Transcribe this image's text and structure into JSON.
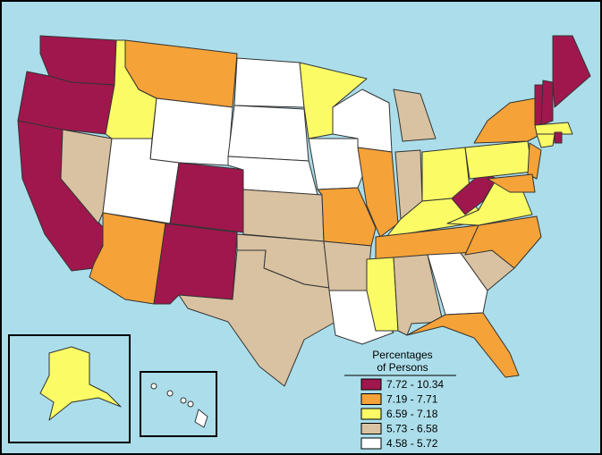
{
  "legend": {
    "title": [
      "Percentages",
      "of Persons"
    ],
    "items": [
      {
        "label": "7.72 - 10.34",
        "color": "#a0174d"
      },
      {
        "label": "7.19 - 7.71",
        "color": "#f5a238"
      },
      {
        "label": "6.59 - 7.18",
        "color": "#fbfb66"
      },
      {
        "label": "5.73 - 6.58",
        "color": "#d9c2a1"
      },
      {
        "label": "4.58 - 5.72",
        "color": "#ffffff"
      }
    ]
  }
}
